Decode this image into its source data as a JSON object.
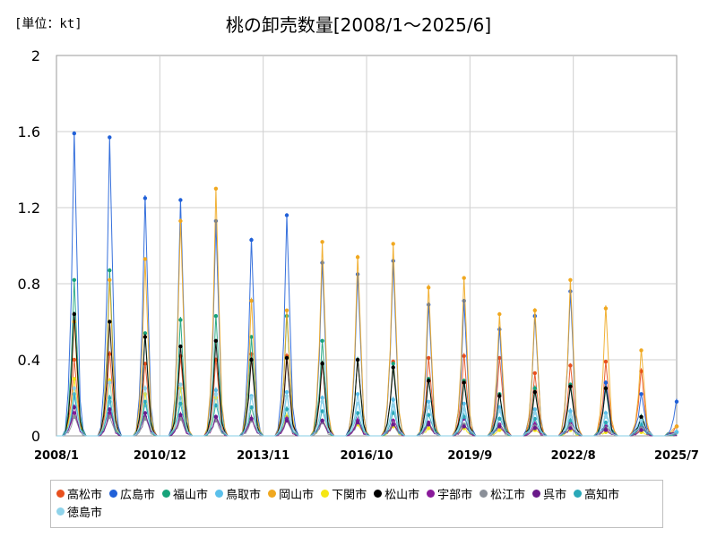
{
  "chart_data": {
    "type": "line",
    "title": "桃の卸売数量[2008/1～2025/6]",
    "unit_label": "[単位：kt]",
    "xlabel": "",
    "ylabel": "",
    "ylim": [
      0,
      2
    ],
    "y_ticks": [
      "0",
      "0.4",
      "0.8",
      "1.2",
      "1.6",
      "2"
    ],
    "x_ticks": [
      "2008/1",
      "2010/12",
      "2013/11",
      "2016/10",
      "2019/9",
      "2022/8",
      "2025/7"
    ],
    "grid": true,
    "legend_position": "bottom",
    "series": [
      {
        "name": "高松市",
        "color": "#e8501e",
        "peaks": [
          0.4,
          0.43,
          0.38,
          0.42,
          0.4,
          0.43,
          0.42,
          0.38,
          0.4,
          0.39,
          0.41,
          0.42,
          0.41,
          0.33,
          0.37,
          0.39,
          0.34,
          0.05
        ]
      },
      {
        "name": "広島市",
        "color": "#2060d8",
        "peaks": [
          1.59,
          1.57,
          1.25,
          1.24,
          1.13,
          1.03,
          1.16,
          0.91,
          0.85,
          0.92,
          0.69,
          0.71,
          0.56,
          0.63,
          0.76,
          0.28,
          0.22,
          0.18
        ]
      },
      {
        "name": "福山市",
        "color": "#17a37a",
        "peaks": [
          0.82,
          0.87,
          0.54,
          0.61,
          0.63,
          0.52,
          0.63,
          0.5,
          0.4,
          0.38,
          0.3,
          0.29,
          0.22,
          0.25,
          0.27,
          0.25,
          0.1,
          0.02
        ]
      },
      {
        "name": "鳥取市",
        "color": "#5bc0eb",
        "peaks": [
          0.2,
          0.18,
          0.16,
          0.2,
          0.24,
          0.21,
          0.23,
          0.2,
          0.22,
          0.19,
          0.18,
          0.17,
          0.15,
          0.14,
          0.13,
          0.12,
          0.1,
          0.02
        ]
      },
      {
        "name": "岡山市",
        "color": "#f0a820",
        "peaks": [
          0.6,
          0.82,
          0.93,
          1.13,
          1.3,
          0.71,
          0.66,
          1.02,
          0.94,
          1.01,
          0.78,
          0.83,
          0.64,
          0.66,
          0.82,
          0.67,
          0.45,
          0.05
        ]
      },
      {
        "name": "下関市",
        "color": "#f5e614",
        "peaks": [
          0.3,
          0.29,
          0.22,
          0.25,
          0.2,
          0.15,
          0.1,
          0.08,
          0.06,
          0.05,
          0.04,
          0.04,
          0.03,
          0.03,
          0.03,
          0.02,
          0.02,
          0.0
        ]
      },
      {
        "name": "松山市",
        "color": "#000000",
        "peaks": [
          0.64,
          0.6,
          0.52,
          0.47,
          0.5,
          0.4,
          0.41,
          0.38,
          0.4,
          0.36,
          0.29,
          0.28,
          0.21,
          0.23,
          0.26,
          0.25,
          0.1,
          0.0
        ]
      },
      {
        "name": "宇部市",
        "color": "#8a1a9b",
        "peaks": [
          0.12,
          0.12,
          0.1,
          0.1,
          0.1,
          0.09,
          0.09,
          0.08,
          0.08,
          0.08,
          0.07,
          0.09,
          0.06,
          0.06,
          0.07,
          0.05,
          0.05,
          0.0
        ]
      },
      {
        "name": "松江市",
        "color": "#8a8f98",
        "peaks": [
          0.1,
          0.1,
          0.09,
          0.09,
          0.08,
          0.08,
          0.08,
          0.07,
          0.07,
          0.06,
          0.06,
          0.06,
          0.05,
          0.05,
          0.05,
          0.04,
          0.04,
          0.0
        ]
      },
      {
        "name": "呉市",
        "color": "#6a1a8a",
        "peaks": [
          0.15,
          0.14,
          0.12,
          0.11,
          0.1,
          0.09,
          0.08,
          0.08,
          0.07,
          0.06,
          0.06,
          0.05,
          0.05,
          0.04,
          0.04,
          0.03,
          0.03,
          0.0
        ]
      },
      {
        "name": "高知市",
        "color": "#2aa8b8",
        "peaks": [
          0.22,
          0.2,
          0.18,
          0.17,
          0.16,
          0.15,
          0.14,
          0.13,
          0.12,
          0.12,
          0.11,
          0.1,
          0.09,
          0.09,
          0.08,
          0.07,
          0.06,
          0.0
        ]
      },
      {
        "name": "徳島市",
        "color": "#8fd3ea",
        "peaks": [
          0.25,
          0.28,
          0.25,
          0.27,
          0.22,
          0.2,
          0.21,
          0.18,
          0.17,
          0.16,
          0.15,
          0.14,
          0.13,
          0.12,
          0.11,
          0.1,
          0.08,
          0.0
        ]
      }
    ]
  }
}
